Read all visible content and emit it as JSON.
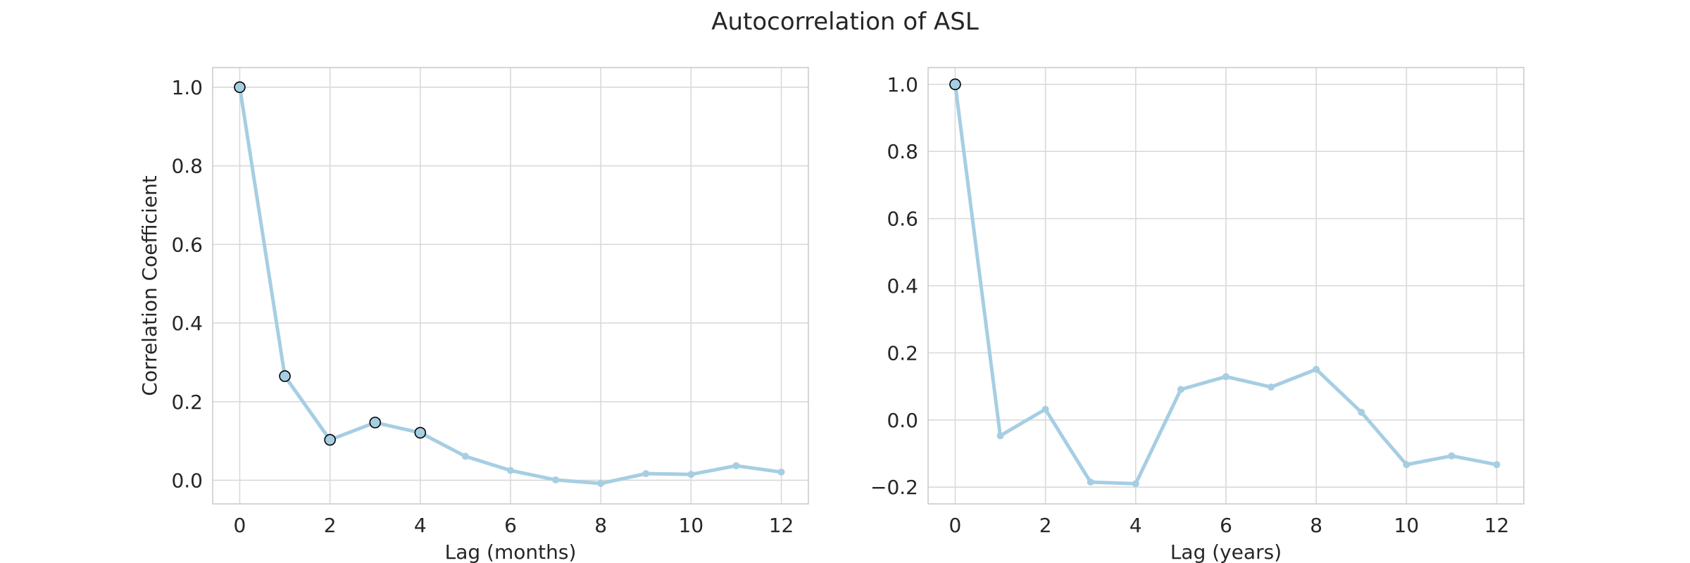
{
  "figure": {
    "title": "Autocorrelation of ASL"
  },
  "chart_data": [
    {
      "type": "line",
      "xlabel": "Lag (months)",
      "ylabel": "Correlation Coefficient",
      "xlim": [
        -0.6,
        12.6
      ],
      "ylim": [
        -0.06,
        1.05
      ],
      "xticks": [
        0,
        2,
        4,
        6,
        8,
        10,
        12
      ],
      "yticks": [
        0.0,
        0.2,
        0.4,
        0.6,
        0.8,
        1.0
      ],
      "ytick_decimals": 1,
      "grid": true,
      "color": "#a6cee3",
      "series": [
        {
          "x": [
            0,
            1,
            2,
            3,
            4,
            5,
            6,
            7,
            8,
            9,
            10,
            11,
            12
          ],
          "values": [
            1.0,
            0.265,
            0.103,
            0.147,
            0.121,
            0.061,
            0.025,
            0.001,
            -0.008,
            0.017,
            0.015,
            0.037,
            0.021
          ],
          "highlighted_x": [
            0,
            1,
            2,
            3,
            4
          ]
        }
      ]
    },
    {
      "type": "line",
      "xlabel": "Lag (years)",
      "ylabel": "",
      "xlim": [
        -0.6,
        12.6
      ],
      "ylim": [
        -0.25,
        1.05
      ],
      "xticks": [
        0,
        2,
        4,
        6,
        8,
        10,
        12
      ],
      "yticks": [
        -0.2,
        0.0,
        0.2,
        0.4,
        0.6,
        0.8,
        1.0
      ],
      "ytick_decimals": 1,
      "grid": true,
      "color": "#a6cee3",
      "series": [
        {
          "x": [
            0,
            1,
            2,
            3,
            4,
            5,
            6,
            7,
            8,
            9,
            10,
            11,
            12
          ],
          "values": [
            1.0,
            -0.047,
            0.032,
            -0.185,
            -0.19,
            0.091,
            0.129,
            0.098,
            0.151,
            0.023,
            -0.133,
            -0.107,
            -0.133
          ],
          "highlighted_x": [
            0
          ]
        }
      ]
    }
  ]
}
